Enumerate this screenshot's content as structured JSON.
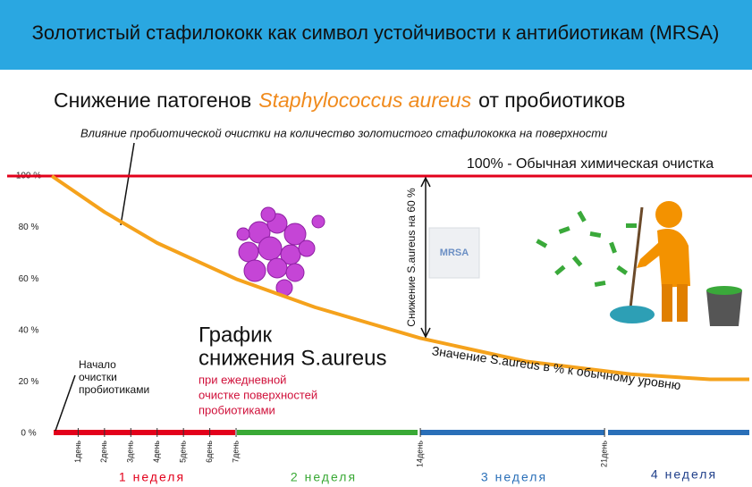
{
  "banner": {
    "title": "Золотистый стафилококк как символ устойчивости к антибиотикам (MRSA)"
  },
  "chart_data": {
    "type": "line",
    "title_parts": [
      "Снижение патогенов",
      "Staphylococcus aureus",
      "от пробиотиков"
    ],
    "subtitle": "Влияние пробиотической очистки на количество золотистого стафилококка на поверхности",
    "x": [
      0,
      2,
      4,
      7,
      10,
      14,
      18,
      22,
      25,
      26.5
    ],
    "series": [
      {
        "name": "График снижения S.aureus",
        "color": "#f5a21c",
        "values": [
          100,
          86,
          74,
          60,
          49,
          37,
          28,
          23,
          21,
          21
        ]
      }
    ],
    "xlim": [
      0,
      26.5
    ],
    "xticks": [
      {
        "value": 1,
        "label": "1день"
      },
      {
        "value": 2,
        "label": "2день"
      },
      {
        "value": 3,
        "label": "3день"
      },
      {
        "value": 4,
        "label": "4день"
      },
      {
        "value": 5,
        "label": "5день"
      },
      {
        "value": 6,
        "label": "6день"
      },
      {
        "value": 7,
        "label": "7день"
      },
      {
        "value": 14,
        "label": "14день"
      },
      {
        "value": 21,
        "label": "21день"
      }
    ],
    "ylim": [
      0,
      100
    ],
    "yticks": [
      {
        "value": 0,
        "label": "0 %"
      },
      {
        "value": 20,
        "label": "20 %"
      },
      {
        "value": 40,
        "label": "40 %"
      },
      {
        "value": 60,
        "label": "60 %"
      },
      {
        "value": 80,
        "label": "80 %"
      },
      {
        "value": 100,
        "label": "100 %"
      }
    ],
    "reference_line": {
      "value": 100,
      "label": "100% - Обычная химическая очистка",
      "color": "#e3001b"
    },
    "weeks": [
      "1 неделя",
      "2 неделя",
      "3 неделя",
      "4 неделя"
    ],
    "annotations": {
      "start": [
        "Начало",
        "очистки",
        "пробиотиками"
      ],
      "graph_title": [
        "График",
        "снижения S.aureus"
      ],
      "graph_note": [
        "при ежедневной",
        "очистке поверхностей",
        "пробиотиками"
      ],
      "reduction": "Снижение S.aureus на 60 %",
      "value_note": "Значение S.aureus в % к обычному уровню",
      "mrsa": "MRSA"
    }
  }
}
